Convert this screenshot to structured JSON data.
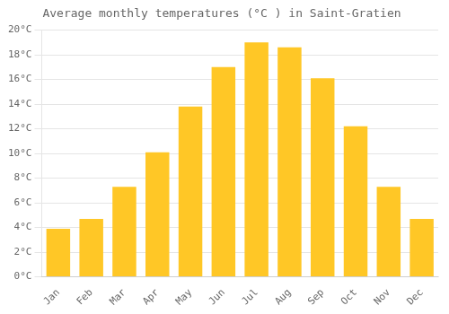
{
  "chart_data": {
    "type": "bar",
    "title": "Average monthly temperatures (°C ) in Saint-Gratien",
    "categories": [
      "Jan",
      "Feb",
      "Mar",
      "Apr",
      "May",
      "Jun",
      "Jul",
      "Aug",
      "Sep",
      "Oct",
      "Nov",
      "Dec"
    ],
    "values": [
      3.9,
      4.7,
      7.3,
      10.1,
      13.8,
      17.0,
      19.0,
      18.6,
      16.1,
      12.2,
      7.3,
      4.7
    ],
    "color": "#FFC726",
    "ylim": [
      0,
      20
    ],
    "yticks": [
      {
        "value": 0,
        "label": "0°C"
      },
      {
        "value": 2,
        "label": "2°C"
      },
      {
        "value": 4,
        "label": "4°C"
      },
      {
        "value": 6,
        "label": "6°C"
      },
      {
        "value": 8,
        "label": "8°C"
      },
      {
        "value": 10,
        "label": "10°C"
      },
      {
        "value": 12,
        "label": "12°C"
      },
      {
        "value": 14,
        "label": "14°C"
      },
      {
        "value": 16,
        "label": "16°C"
      },
      {
        "value": 18,
        "label": "18°C"
      },
      {
        "value": 20,
        "label": "20°C"
      }
    ],
    "grid": true
  }
}
